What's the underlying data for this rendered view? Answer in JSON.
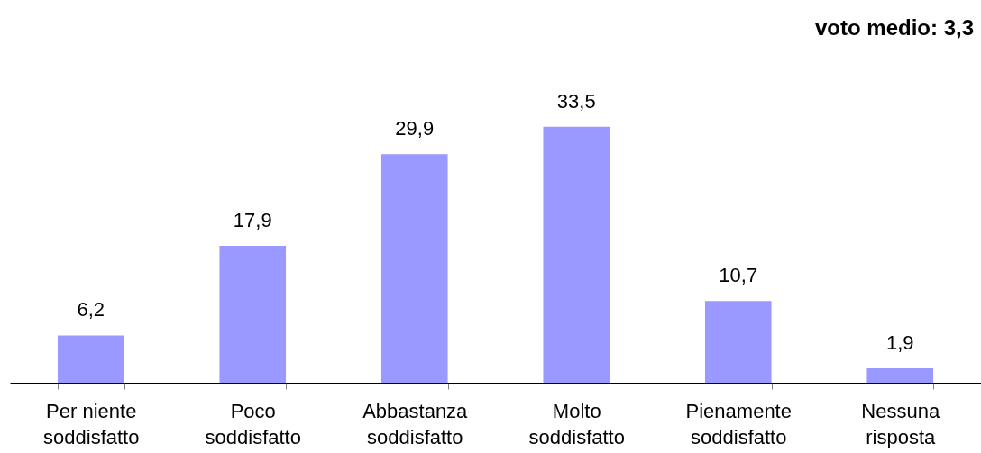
{
  "chart_data": {
    "type": "bar",
    "categories": [
      "Per niente soddisfatto",
      "Poco soddisfatto",
      "Abbastanza soddisfatto",
      "Molto soddisfatto",
      "Pienamente soddisfatto",
      "Nessuna risposta"
    ],
    "values": [
      6.2,
      17.9,
      29.9,
      33.5,
      10.7,
      1.9
    ],
    "value_labels": [
      "6,2",
      "17,9",
      "29,9",
      "33,5",
      "10,7",
      "1,9"
    ],
    "color": "#9999ff",
    "annotations": [
      "voto medio: 3,3"
    ],
    "tick_labels": "x",
    "grid": false
  }
}
